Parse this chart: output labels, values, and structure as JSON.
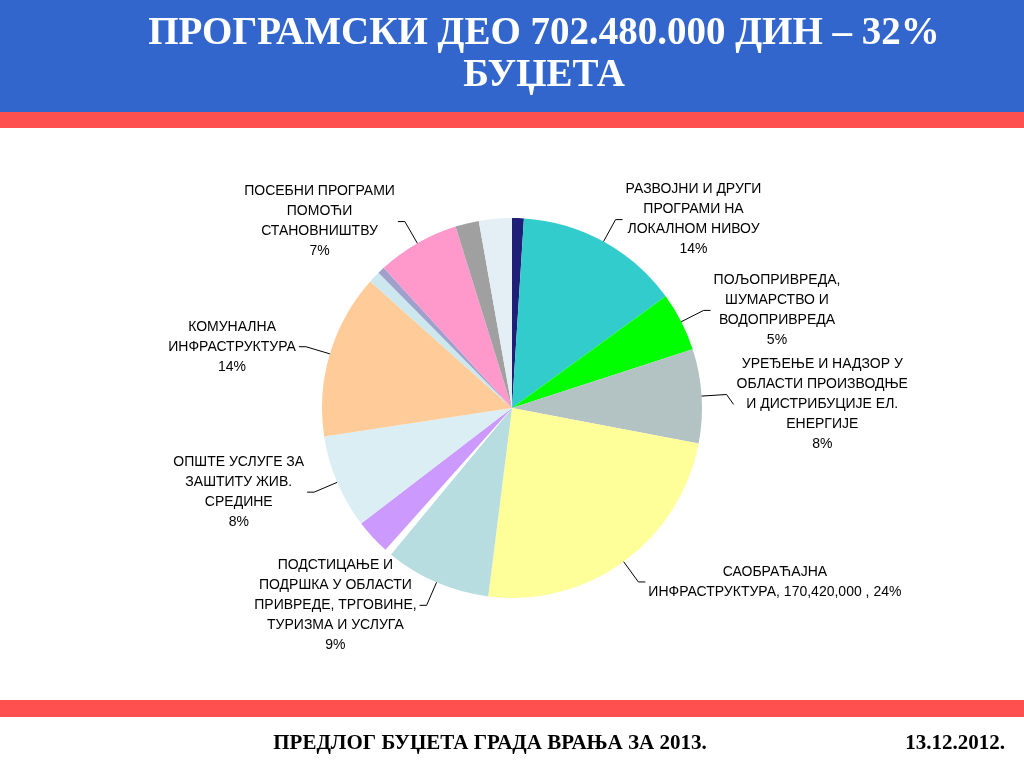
{
  "chart_data": {
    "type": "pie",
    "title": "ПРОГРАМСКИ ДЕО 702.480.000 ДИН – 32% БУЏЕТА",
    "categories": [
      null,
      "РАЗВОЈНИ И ДРУГИ ПРОГРАМИ НА ЛОКАЛНОМ НИВОУ",
      "ПОЉОПРИВРЕДА, ШУМАРСТВО И ВОДОПРИВРЕДА",
      "УРЕЂЕЊЕ И НАДЗОР У ОБЛАСТИ ПРОИЗВОДЊЕ И ДИСТРИБУЦИЈЕ ЕЛ. ЕНЕРГИЈЕ",
      "САОБРАЋАЈНА ИНФРАСТРУКТУРА",
      "ПОДСТИЦАЊЕ И ПОДРШКА У ОБЛАСТИ ПРИВРЕДЕ, ТРГОВИНЕ, ТУРИЗМА И УСЛУГА",
      null,
      null,
      "ОПШТЕ УСЛУГЕ ЗА ЗАШТИТУ ЖИВ. СРЕДИНЕ",
      "КОМУНАЛНА ИНФРАСТРУКТУРА",
      null,
      null,
      "ПОСЕБНИ ПРОГРАМИ ПОМОЋИ СТАНОВНИШТВУ",
      null,
      null
    ],
    "values": [
      1,
      14,
      5,
      8,
      24,
      9,
      0.6,
      3,
      8,
      14,
      1,
      0.6,
      7,
      2,
      2.8
    ],
    "value_labels": [
      null,
      "14%",
      "5%",
      "8%",
      "170,420,000 , 24%",
      "9%",
      null,
      null,
      "8%",
      "14%",
      null,
      null,
      "7%",
      null,
      null
    ],
    "colors": [
      "#1f1f78",
      "#33cccc",
      "#00ff00",
      "#b3c3c3",
      "#ffff99",
      "#b7dde1",
      "#ffffff",
      "#cc99ff",
      "#dbeef3",
      "#ffcc99",
      "#cce8ee",
      "#9fa0cc",
      "#ff99cc",
      "#a0a0a0",
      "#e3eff4"
    ],
    "annotations": [
      "ПРЕДЛОГ БУЏЕТА ГРАДА ВРАЊА ЗА 2013.",
      "13.12.2012."
    ]
  }
}
